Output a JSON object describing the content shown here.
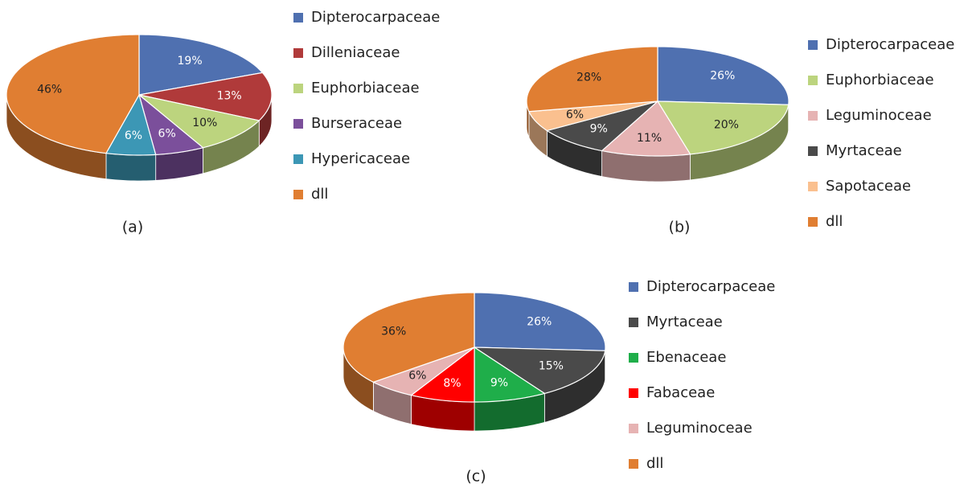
{
  "chart_data": [
    {
      "type": "pie",
      "caption": "(a)",
      "categories": [
        "Dipterocarpaceae",
        "Dilleniaceae",
        "Euphorbiaceae",
        "Burseraceae",
        "Hypericaceae",
        "dll"
      ],
      "values": [
        19,
        13,
        10,
        6,
        6,
        46
      ],
      "value_labels": [
        "19%",
        "13%",
        "10%",
        "6%",
        "6%",
        "46%"
      ],
      "colors": [
        "#4f70b0",
        "#b03a3a",
        "#bcd47e",
        "#7b4f9b",
        "#3c97b5",
        "#e07e32"
      ]
    },
    {
      "type": "pie",
      "caption": "(b)",
      "categories": [
        "Dipterocarpaceae",
        "Euphorbiaceae",
        "Leguminoceae",
        "Myrtaceae",
        "Sapotaceae",
        "dll"
      ],
      "values": [
        26,
        20,
        11,
        9,
        6,
        28
      ],
      "value_labels": [
        "26%",
        "20%",
        "11%",
        "9%",
        "6%",
        "28%"
      ],
      "colors": [
        "#4f70b0",
        "#bcd47e",
        "#e6b3b3",
        "#4a4a4a",
        "#fac08f",
        "#e07e32"
      ]
    },
    {
      "type": "pie",
      "caption": "(c)",
      "categories": [
        "Dipterocarpaceae",
        "Myrtaceae",
        "Ebenaceae",
        "Fabaceae",
        "Leguminoceae",
        "dll"
      ],
      "values": [
        26,
        15,
        9,
        8,
        6,
        36
      ],
      "value_labels": [
        "26%",
        "15%",
        "9%",
        "8%",
        "6%",
        "36%"
      ],
      "colors": [
        "#4f70b0",
        "#4a4a4a",
        "#1fae4a",
        "#ff0000",
        "#e6b3b3",
        "#e07e32"
      ]
    }
  ]
}
